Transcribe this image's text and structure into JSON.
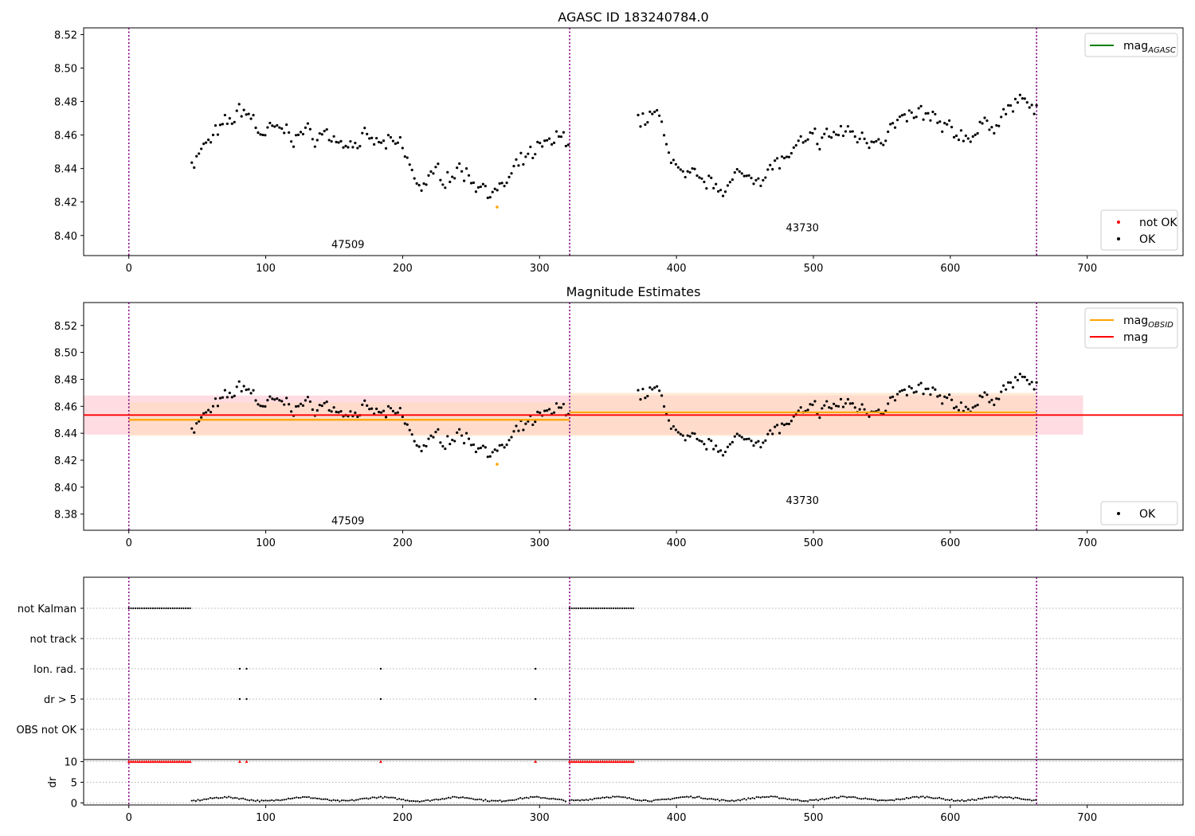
{
  "chart_data": [
    {
      "type": "scatter",
      "title": "AGASC ID 183240784.0",
      "xlim": [
        -33,
        770
      ],
      "ylim": [
        8.388,
        8.524
      ],
      "xticks": [
        0,
        100,
        200,
        300,
        400,
        500,
        600,
        700
      ],
      "yticks": [
        8.4,
        8.42,
        8.44,
        8.46,
        8.48,
        8.5,
        8.52
      ],
      "ytick_labels": [
        "8.40",
        "8.42",
        "8.44",
        "8.46",
        "8.48",
        "8.50",
        "8.52"
      ],
      "obs_boundaries": [
        0,
        322,
        663
      ],
      "obs_labels": [
        {
          "text": "47509",
          "x": 160,
          "y": 8.3925
        },
        {
          "text": "43730",
          "x": 492,
          "y": 8.4025
        }
      ],
      "series": [
        {
          "name": "OK",
          "color": "#000000",
          "segments": [
            {
              "x0": 46,
              "x1": 321,
              "points": 160,
              "anchors": [
                [
                  46,
                  8.445
                ],
                [
                  85,
                  8.476
                ],
                [
                  95,
                  8.462
                ],
                [
                  140,
                  8.46
                ],
                [
                  200,
                  8.452
                ],
                [
                  210,
                  8.43
                ],
                [
                  240,
                  8.44
                ],
                [
                  270,
                  8.425
                ],
                [
                  290,
                  8.445
                ],
                [
                  321,
                  8.46
                ]
              ]
            },
            {
              "x0": 372,
              "x1": 663,
              "points": 170,
              "anchors": [
                [
                  372,
                  8.468
                ],
                [
                  385,
                  8.472
                ],
                [
                  393,
                  8.455
                ],
                [
                  405,
                  8.432
                ],
                [
                  430,
                  8.43
                ],
                [
                  470,
                  8.44
                ],
                [
                  490,
                  8.452
                ],
                [
                  520,
                  8.462
                ],
                [
                  540,
                  8.458
                ],
                [
                  580,
                  8.472
                ],
                [
                  600,
                  8.46
                ],
                [
                  620,
                  8.462
                ],
                [
                  655,
                  8.482
                ],
                [
                  663,
                  8.47
                ]
              ]
            }
          ]
        },
        {
          "name": "not OK",
          "color": "#ff0000",
          "points": []
        }
      ],
      "highlight_points": [
        {
          "x": 269,
          "y": 8.417,
          "color": "#ffa500"
        }
      ],
      "legends": [
        {
          "position": "top-right",
          "entries": [
            {
              "label": "mag",
              "sub": "AGASC",
              "color": "#008000",
              "kind": "line"
            }
          ]
        },
        {
          "position": "bottom-right",
          "entries": [
            {
              "label": "not OK",
              "color": "#ff0000",
              "kind": "dot"
            },
            {
              "label": "OK",
              "color": "#000000",
              "kind": "dot"
            }
          ]
        }
      ]
    },
    {
      "type": "scatter",
      "title": "Magnitude Estimates",
      "xlim": [
        -33,
        770
      ],
      "ylim": [
        8.368,
        8.537
      ],
      "xticks": [
        0,
        100,
        200,
        300,
        400,
        500,
        600,
        700
      ],
      "yticks": [
        8.38,
        8.4,
        8.42,
        8.44,
        8.46,
        8.48,
        8.5,
        8.52
      ],
      "ytick_labels": [
        "8.38",
        "8.40",
        "8.42",
        "8.44",
        "8.46",
        "8.48",
        "8.50",
        "8.52"
      ],
      "obs_boundaries": [
        0,
        322,
        663
      ],
      "obs_labels": [
        {
          "text": "47509",
          "x": 160,
          "y": 8.3725
        },
        {
          "text": "43730",
          "x": 492,
          "y": 8.3875
        }
      ],
      "mag": {
        "value": 8.4535,
        "band": [
          8.439,
          8.468
        ],
        "x0": -33,
        "x1": 697,
        "color": "#ff0000"
      },
      "mag_obsid": [
        {
          "x0": 0,
          "x1": 322,
          "value": 8.45,
          "band": [
            8.438,
            8.463
          ]
        },
        {
          "x0": 322,
          "x1": 663,
          "value": 8.4555,
          "band": [
            8.438,
            8.47
          ]
        }
      ],
      "series": [
        {
          "name": "OK",
          "color": "#000000",
          "same_as_panel": 0
        }
      ],
      "highlight_points": [
        {
          "x": 269,
          "y": 8.417,
          "color": "#ffa500"
        }
      ],
      "legends": [
        {
          "position": "top-right",
          "entries": [
            {
              "label": "mag",
              "sub": "OBSID",
              "color": "#ffa500",
              "kind": "line"
            },
            {
              "label": "mag",
              "color": "#ff0000",
              "kind": "line"
            }
          ]
        },
        {
          "position": "bottom-right",
          "entries": [
            {
              "label": "OK",
              "color": "#000000",
              "kind": "dot"
            }
          ]
        }
      ]
    },
    {
      "type": "scatter",
      "title": "",
      "xlim": [
        -33,
        770
      ],
      "categories": [
        "not Kalman",
        "not track",
        "Ion. rad.",
        "dr > 5",
        "OBS not OK"
      ],
      "obs_boundaries": [
        0,
        322,
        663
      ],
      "flags": [
        {
          "category": "not Kalman",
          "ranges": [
            [
              0,
              46
            ],
            [
              322,
              370
            ]
          ],
          "points": []
        },
        {
          "category": "not track",
          "ranges": [],
          "points": []
        },
        {
          "category": "Ion. rad.",
          "ranges": [],
          "points": [
            81,
            86,
            184,
            297
          ]
        },
        {
          "category": "dr > 5",
          "ranges": [],
          "points": [
            81,
            86,
            184,
            297
          ]
        },
        {
          "category": "OBS not OK",
          "ranges": [],
          "points": []
        }
      ]
    },
    {
      "type": "scatter",
      "title": "",
      "ylabel": "dr",
      "xlim": [
        -33,
        770
      ],
      "ylim": [
        -0.5,
        10.5
      ],
      "xticks": [
        0,
        100,
        200,
        300,
        400,
        500,
        600,
        700
      ],
      "yticks": [
        0,
        5,
        10
      ],
      "ytick_labels": [
        "0",
        "5",
        "10"
      ],
      "obs_boundaries": [
        0,
        322,
        663
      ],
      "series": [
        {
          "name": "dr",
          "color": "#000000",
          "segments": [
            [
              46,
              320,
              0.9
            ],
            [
              322,
              663,
              1.0
            ]
          ]
        },
        {
          "name": "dr clipped",
          "color": "#ff0000",
          "value": 10,
          "ranges": [
            [
              0,
              46
            ],
            [
              322,
              370
            ]
          ],
          "points": [
            81,
            86,
            184,
            297
          ]
        }
      ]
    }
  ],
  "colors": {
    "obs_line": "#800080",
    "mag_agasc": "#008000",
    "mag_obsid": "#ffa500",
    "mag": "#ff0000",
    "mag_band": "#ffc0cb",
    "obsid_band": "#ffdab9",
    "ok": "#000000",
    "not_ok": "#ff0000"
  }
}
